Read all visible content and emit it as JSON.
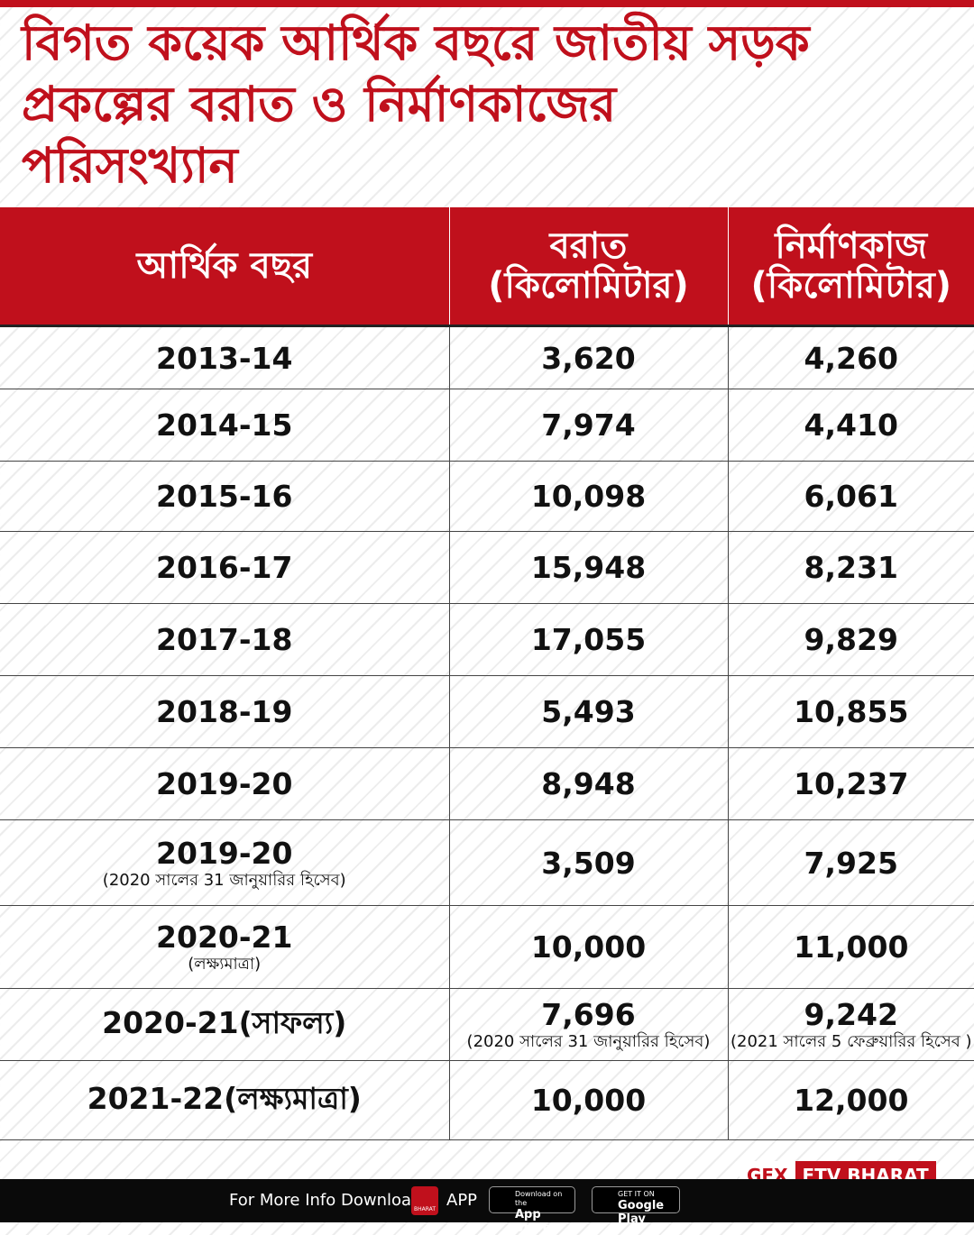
{
  "title_lines": [
    "বিগত কয়েক আর্থিক বছরে জাতীয় সড়ক",
    "প্রকল্পের বরাত ও নির্মাণকাজের",
    "পরিসংখ্যান"
  ],
  "table": {
    "header": [
      [
        "আর্থিক বছর"
      ],
      [
        "বরাত",
        "(কিলোমিটার)"
      ],
      [
        "নির্মাণকাজ",
        "(কিলোমিটার)"
      ]
    ],
    "rows": [
      {
        "year": "2013-14",
        "allocation": "3,620",
        "construction": "4,260"
      },
      {
        "year": "2014-15",
        "allocation": "7,974",
        "construction": "4,410"
      },
      {
        "year": "2015-16",
        "allocation": "10,098",
        "construction": "6,061"
      },
      {
        "year": "2016-17",
        "allocation": "15,948",
        "construction": "8,231"
      },
      {
        "year": "2017-18",
        "allocation": "17,055",
        "construction": "9,829"
      },
      {
        "year": "2018-19",
        "allocation": "5,493",
        "construction": "10,855"
      },
      {
        "year": "2019-20",
        "allocation": "8,948",
        "construction": "10,237"
      },
      {
        "year": "2019-20",
        "year_note": "(2020 সালের 31 জানুয়ারির হিসেব)",
        "allocation": "3,509",
        "construction": "7,925"
      },
      {
        "year": "2020-21",
        "year_note": "(লক্ষ্যমাত্রা)",
        "allocation": "10,000",
        "construction": "11,000"
      },
      {
        "year": "2020-21(সাফল্য)",
        "allocation": "7,696",
        "allocation_note": "(2020 সালের 31 জানুয়ারির হিসেব)",
        "construction": "9,242",
        "construction_note": "(2021 সালের 5 ফেব্রুয়ারির হিসেব )"
      },
      {
        "year": "2021-22(লক্ষ্যমাত্রা)",
        "allocation": "10,000",
        "construction": "12,000"
      }
    ]
  },
  "branding": {
    "gfx": "GFX",
    "channel": "ETV BHARAT"
  },
  "footer": {
    "text": "For More Info Download",
    "logo_text": "BHARAT",
    "app": "APP",
    "app_store": [
      "Download on the",
      "App Store"
    ],
    "google_play": [
      "GET IT ON",
      "Google Play"
    ]
  }
}
